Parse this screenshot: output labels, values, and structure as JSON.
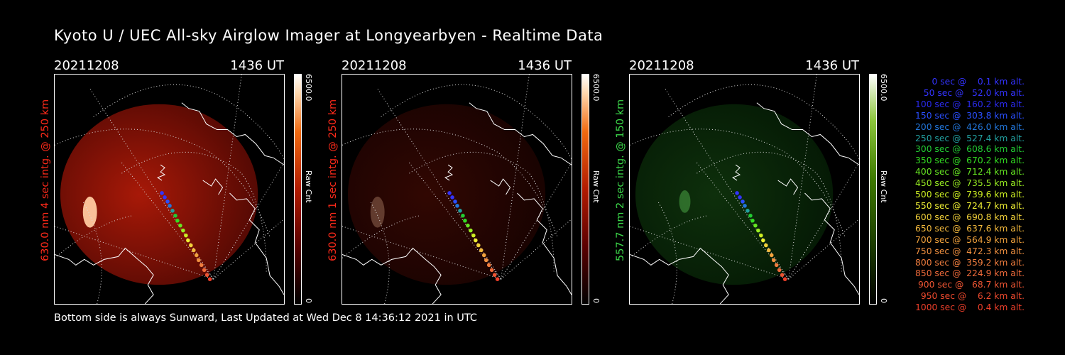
{
  "title": "Kyoto U / UEC All-sky Airglow Imager at Longyearbyen - Realtime Data",
  "footer": "Bottom side is always Sunward, Last Updated at Wed Dec  8 14:36:12 2021 in UTC",
  "panels": [
    {
      "date": "20211208",
      "time": "1436 UT",
      "ylabel": "630.0 nm 4 sec intg. @ 250 km",
      "label_color": "#ff2a1a",
      "cbar_max": "6500.0",
      "cbar_min": "0",
      "cbar_unit": "Raw Cnt",
      "tint": "red",
      "intensity": 0.95
    },
    {
      "date": "20211208",
      "time": "1436 UT",
      "ylabel": "630.0 nm 1 sec intg. @ 250 km",
      "label_color": "#ff2a1a",
      "cbar_max": "6500.0",
      "cbar_min": "0",
      "cbar_unit": "Raw Cnt",
      "tint": "red",
      "intensity": 0.28
    },
    {
      "date": "20211208",
      "time": "1436 UT",
      "ylabel": "557.7 nm 2 sec intg. @ 150 km",
      "label_color": "#3cd94a",
      "cbar_max": "6500.0",
      "cbar_min": "0",
      "cbar_unit": "Raw Cnt",
      "tint": "green",
      "intensity": 0.45
    }
  ],
  "legend": [
    {
      "text": "   0 sec @    0.1 km alt.",
      "color": "#3333ff"
    },
    {
      "text": "  50 sec @   52.0 km alt.",
      "color": "#3333ff"
    },
    {
      "text": " 100 sec @  160.2 km alt.",
      "color": "#2a2aee"
    },
    {
      "text": " 150 sec @  303.8 km alt.",
      "color": "#2a4fff"
    },
    {
      "text": " 200 sec @  426.0 km alt.",
      "color": "#2277dd"
    },
    {
      "text": " 250 sec @  527.4 km alt.",
      "color": "#22a0a0"
    },
    {
      "text": " 300 sec @  608.6 km alt.",
      "color": "#22cc33"
    },
    {
      "text": " 350 sec @  670.2 km alt.",
      "color": "#33dd22"
    },
    {
      "text": " 400 sec @  712.4 km alt.",
      "color": "#66e622"
    },
    {
      "text": " 450 sec @  735.5 km alt.",
      "color": "#99ee22"
    },
    {
      "text": " 500 sec @  739.6 km alt.",
      "color": "#ccee22"
    },
    {
      "text": " 550 sec @  724.7 km alt.",
      "color": "#eeee33"
    },
    {
      "text": " 600 sec @  690.8 km alt.",
      "color": "#f3d23a"
    },
    {
      "text": " 650 sec @  637.6 km alt.",
      "color": "#f2b83c"
    },
    {
      "text": " 700 sec @  564.9 km alt.",
      "color": "#f2a23c"
    },
    {
      "text": " 750 sec @  472.3 km alt.",
      "color": "#f09040"
    },
    {
      "text": " 800 sec @  359.2 km alt.",
      "color": "#f07d3e"
    },
    {
      "text": " 850 sec @  224.9 km alt.",
      "color": "#ef6a3a"
    },
    {
      "text": " 900 sec @   68.7 km alt.",
      "color": "#ee5533"
    },
    {
      "text": " 950 sec @    6.2 km alt.",
      "color": "#ee4a2e"
    },
    {
      "text": "1000 sec @    0.4 km alt.",
      "color": "#ee3f2a"
    }
  ]
}
